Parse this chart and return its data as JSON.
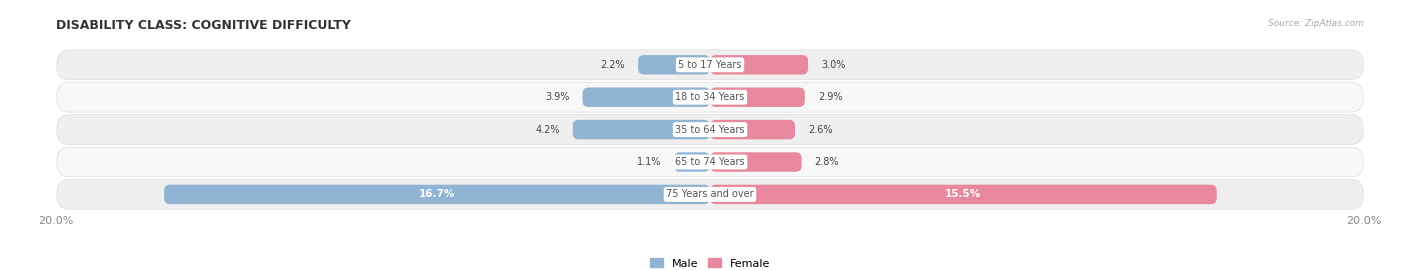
{
  "title": "DISABILITY CLASS: COGNITIVE DIFFICULTY",
  "source": "Source: ZipAtlas.com",
  "categories": [
    "5 to 17 Years",
    "18 to 34 Years",
    "35 to 64 Years",
    "65 to 74 Years",
    "75 Years and over"
  ],
  "male_values": [
    2.2,
    3.9,
    4.2,
    1.1,
    16.7
  ],
  "female_values": [
    3.0,
    2.9,
    2.6,
    2.8,
    15.5
  ],
  "male_color": "#92b4d4",
  "female_color": "#e8889e",
  "male_label": "Male",
  "female_label": "Female",
  "max_val": 20.0,
  "bg_color": "#ffffff",
  "row_bg_even": "#efefef",
  "row_bg_odd": "#f8f8f8",
  "center_label_color": "#555555",
  "value_label_color": "#444444",
  "title_color": "#333333",
  "axis_label_color": "#888888"
}
